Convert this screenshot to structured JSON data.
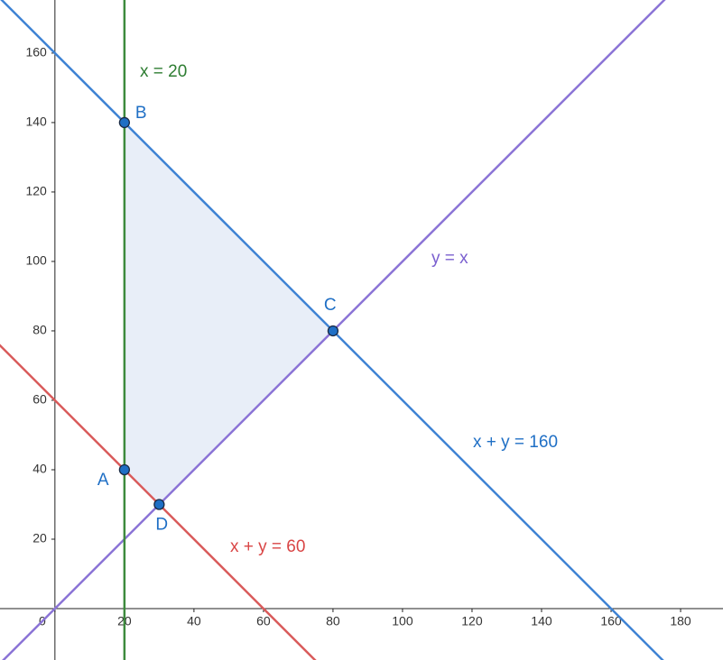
{
  "chart_data": {
    "type": "line",
    "xlim": [
      -15.8,
      192.2
    ],
    "ylim": [
      -14.8,
      175.3
    ],
    "xticks": [
      0,
      20,
      40,
      60,
      80,
      100,
      120,
      140,
      160,
      180
    ],
    "yticks": [
      20,
      40,
      60,
      80,
      100,
      120,
      140,
      160
    ],
    "grid": false,
    "region": {
      "color": "#e8eef8",
      "x": [
        20,
        20,
        80,
        30
      ],
      "y": [
        40,
        140,
        80,
        30
      ]
    },
    "series": [
      {
        "name": "x + y = 160",
        "color": "#3f83d4",
        "label_color": "#1f6fc5",
        "x": [
          -16,
          176
        ],
        "y": [
          176,
          -16
        ]
      },
      {
        "name": "x + y = 60",
        "color": "#d95b5b",
        "label_color": "#d94545",
        "x": [
          -16,
          76
        ],
        "y": [
          76,
          -16
        ]
      },
      {
        "name": "y = x",
        "color": "#8b74d6",
        "label_color": "#7a5fcf",
        "x": [
          -16,
          176
        ],
        "y": [
          -16,
          176
        ]
      },
      {
        "name": "x = 20",
        "color": "#3d8a3d",
        "label_color": "#2e7d32",
        "x": [
          20,
          20
        ],
        "y": [
          -16,
          176
        ]
      }
    ],
    "points": [
      {
        "label": "A",
        "x": 20,
        "y": 40
      },
      {
        "label": "B",
        "x": 20,
        "y": 140
      },
      {
        "label": "C",
        "x": 80,
        "y": 80
      },
      {
        "label": "D",
        "x": 30,
        "y": 30
      }
    ],
    "point_color": "#1f6fc5"
  }
}
